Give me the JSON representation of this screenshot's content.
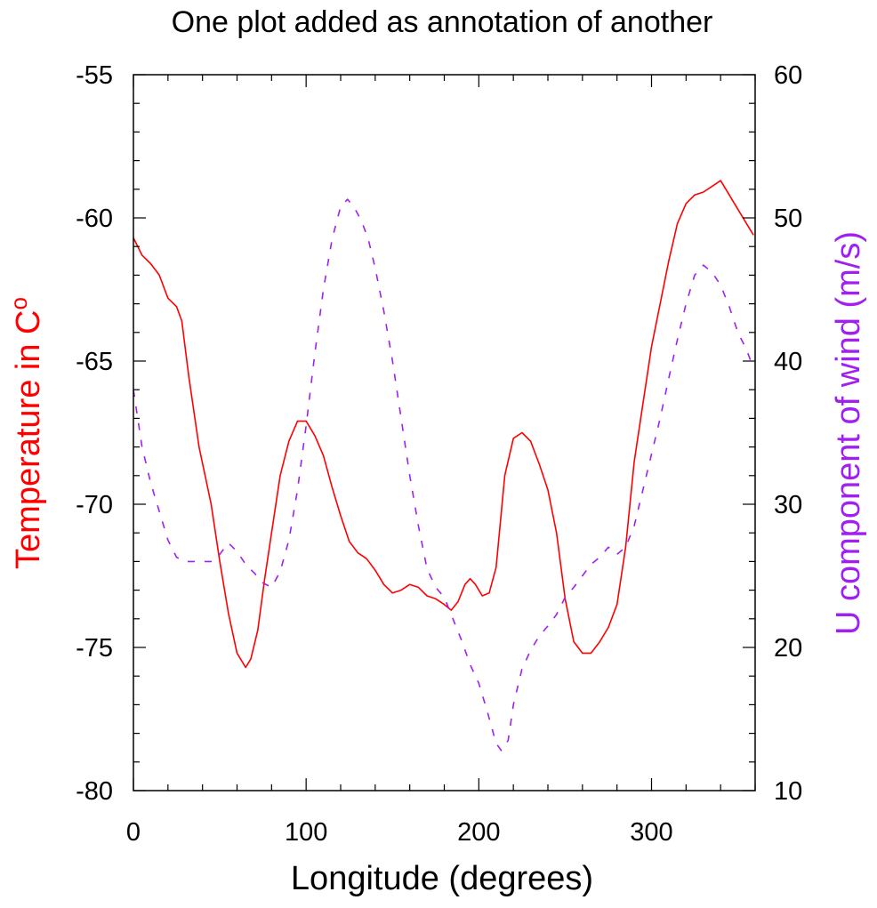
{
  "chart_data": {
    "type": "line",
    "title": "One plot added as annotation of another",
    "xlabel": "Longitude (degrees)",
    "x_ticks": [
      0,
      100,
      200,
      300
    ],
    "xlim": [
      0,
      360
    ],
    "left_axis": {
      "label": "Temperature in C",
      "label_superscript": "o",
      "ylim": [
        -80,
        -55
      ],
      "ticks": [
        -80,
        -75,
        -70,
        -65,
        -60,
        -55
      ],
      "color": "#ff0000"
    },
    "right_axis": {
      "label": "U component of wind (m/s)",
      "ylim": [
        10,
        60
      ],
      "ticks": [
        10,
        20,
        30,
        40,
        50,
        60
      ],
      "color": "#a020f0"
    },
    "series": [
      {
        "axis": "left",
        "style": "solid",
        "color": "#ff0000",
        "points": [
          [
            0,
            -60.7
          ],
          [
            5,
            -61.3
          ],
          [
            10,
            -61.6
          ],
          [
            15,
            -62.0
          ],
          [
            20,
            -62.8
          ],
          [
            25,
            -63.1
          ],
          [
            28,
            -63.6
          ],
          [
            32,
            -65.5
          ],
          [
            38,
            -68.0
          ],
          [
            45,
            -70.0
          ],
          [
            50,
            -72.0
          ],
          [
            55,
            -73.8
          ],
          [
            60,
            -75.2
          ],
          [
            65,
            -75.7
          ],
          [
            68,
            -75.4
          ],
          [
            72,
            -74.4
          ],
          [
            76,
            -72.6
          ],
          [
            80,
            -71.0
          ],
          [
            85,
            -69.0
          ],
          [
            90,
            -67.8
          ],
          [
            95,
            -67.1
          ],
          [
            100,
            -67.1
          ],
          [
            105,
            -67.6
          ],
          [
            110,
            -68.3
          ],
          [
            115,
            -69.4
          ],
          [
            120,
            -70.4
          ],
          [
            125,
            -71.3
          ],
          [
            130,
            -71.7
          ],
          [
            135,
            -71.9
          ],
          [
            140,
            -72.3
          ],
          [
            145,
            -72.8
          ],
          [
            150,
            -73.1
          ],
          [
            155,
            -73.0
          ],
          [
            160,
            -72.8
          ],
          [
            165,
            -72.9
          ],
          [
            170,
            -73.2
          ],
          [
            175,
            -73.3
          ],
          [
            180,
            -73.5
          ],
          [
            184,
            -73.7
          ],
          [
            188,
            -73.4
          ],
          [
            192,
            -72.8
          ],
          [
            195,
            -72.6
          ],
          [
            198,
            -72.8
          ],
          [
            202,
            -73.2
          ],
          [
            206,
            -73.1
          ],
          [
            210,
            -72.2
          ],
          [
            215,
            -69.0
          ],
          [
            220,
            -67.7
          ],
          [
            225,
            -67.5
          ],
          [
            230,
            -67.8
          ],
          [
            235,
            -68.6
          ],
          [
            240,
            -69.5
          ],
          [
            245,
            -71.0
          ],
          [
            250,
            -73.3
          ],
          [
            255,
            -74.8
          ],
          [
            260,
            -75.2
          ],
          [
            265,
            -75.2
          ],
          [
            270,
            -74.8
          ],
          [
            275,
            -74.3
          ],
          [
            280,
            -73.5
          ],
          [
            285,
            -71.5
          ],
          [
            290,
            -68.5
          ],
          [
            295,
            -66.5
          ],
          [
            300,
            -64.5
          ],
          [
            305,
            -63.0
          ],
          [
            310,
            -61.5
          ],
          [
            315,
            -60.2
          ],
          [
            320,
            -59.5
          ],
          [
            325,
            -59.2
          ],
          [
            330,
            -59.1
          ],
          [
            335,
            -58.9
          ],
          [
            340,
            -58.7
          ],
          [
            345,
            -59.2
          ],
          [
            350,
            -59.7
          ],
          [
            355,
            -60.2
          ],
          [
            359,
            -60.6
          ]
        ]
      },
      {
        "axis": "right",
        "style": "dashed",
        "color": "#a020f0",
        "points": [
          [
            0,
            38.0
          ],
          [
            5,
            34.0
          ],
          [
            10,
            31.5
          ],
          [
            15,
            29.5
          ],
          [
            20,
            27.5
          ],
          [
            25,
            26.3
          ],
          [
            30,
            26.0
          ],
          [
            35,
            26.0
          ],
          [
            40,
            26.0
          ],
          [
            45,
            26.0
          ],
          [
            50,
            26.5
          ],
          [
            55,
            27.3
          ],
          [
            60,
            26.7
          ],
          [
            65,
            25.8
          ],
          [
            70,
            25.2
          ],
          [
            75,
            24.5
          ],
          [
            80,
            24.2
          ],
          [
            85,
            25.3
          ],
          [
            90,
            27.5
          ],
          [
            95,
            31.0
          ],
          [
            100,
            35.5
          ],
          [
            105,
            40.5
          ],
          [
            110,
            45.0
          ],
          [
            115,
            48.5
          ],
          [
            120,
            50.8
          ],
          [
            124,
            51.3
          ],
          [
            128,
            50.7
          ],
          [
            132,
            49.8
          ],
          [
            136,
            48.5
          ],
          [
            140,
            46.5
          ],
          [
            145,
            43.5
          ],
          [
            150,
            40.0
          ],
          [
            155,
            36.0
          ],
          [
            160,
            32.0
          ],
          [
            165,
            28.5
          ],
          [
            170,
            25.5
          ],
          [
            175,
            24.2
          ],
          [
            180,
            23.5
          ],
          [
            185,
            22.0
          ],
          [
            190,
            20.5
          ],
          [
            195,
            18.8
          ],
          [
            200,
            17.5
          ],
          [
            205,
            15.5
          ],
          [
            210,
            13.3
          ],
          [
            213,
            12.8
          ],
          [
            217,
            13.5
          ],
          [
            220,
            16.0
          ],
          [
            225,
            18.5
          ],
          [
            230,
            19.8
          ],
          [
            235,
            20.8
          ],
          [
            240,
            21.5
          ],
          [
            245,
            22.3
          ],
          [
            250,
            23.5
          ],
          [
            255,
            24.2
          ],
          [
            260,
            25.0
          ],
          [
            265,
            25.8
          ],
          [
            270,
            26.3
          ],
          [
            275,
            27.0
          ],
          [
            280,
            26.5
          ],
          [
            285,
            27.0
          ],
          [
            290,
            28.5
          ],
          [
            295,
            31.0
          ],
          [
            300,
            33.5
          ],
          [
            305,
            36.0
          ],
          [
            310,
            38.8
          ],
          [
            315,
            41.5
          ],
          [
            320,
            44.0
          ],
          [
            325,
            46.0
          ],
          [
            330,
            46.7
          ],
          [
            335,
            46.2
          ],
          [
            340,
            45.3
          ],
          [
            345,
            43.8
          ],
          [
            350,
            42.0
          ],
          [
            355,
            40.8
          ],
          [
            359,
            39.5
          ]
        ]
      }
    ]
  }
}
